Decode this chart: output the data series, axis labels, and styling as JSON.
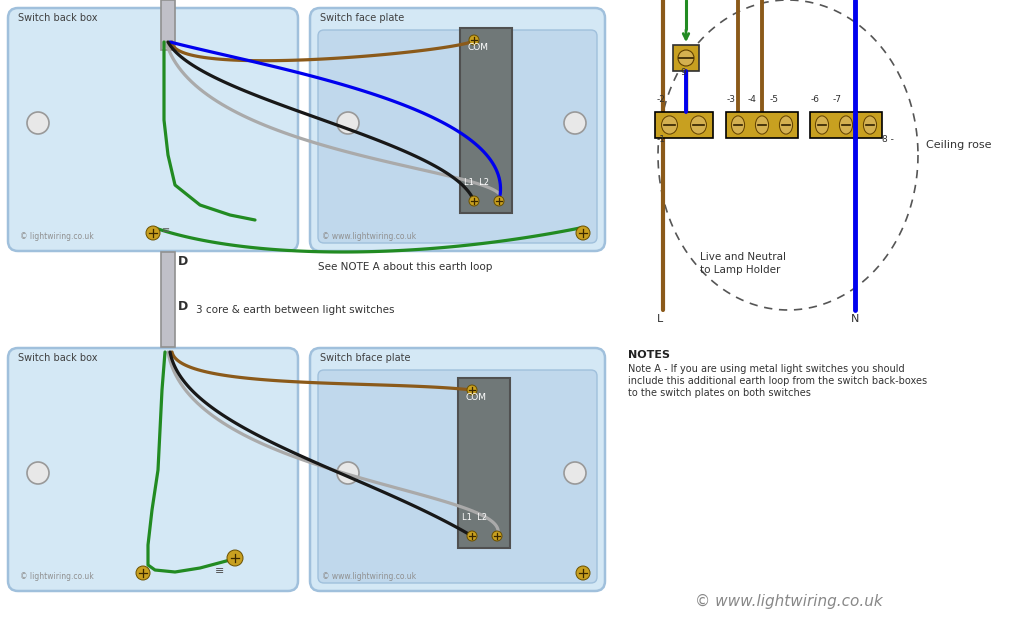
{
  "bg_color": "#ffffff",
  "switch_box_bg": "#d4e8f5",
  "switch_box_border": "#a0c0dc",
  "switch_plate_bg": "#c0d8ec",
  "terminal_block_color": "#c8a020",
  "terminal_block_border": "#000000",
  "switch_body_color": "#707878",
  "switch_body_border": "#505050",
  "wire_brown": "#8B5A1A",
  "wire_blue": "#0000ee",
  "wire_black": "#181818",
  "wire_gray": "#aaaaaa",
  "wire_green": "#228B22",
  "conduit_color": "#c0c0c8",
  "gold_screw": "#c8a020",
  "notes_text_title": "NOTES",
  "notes_line1": "Note A - If you are using metal light switches you should",
  "notes_line2": "include this additional earth loop from the switch back-boxes",
  "notes_line3": "to the switch plates on both switches",
  "copyright_text": "© www.lightwiring.co.uk",
  "ceiling_rose_text": "Ceiling rose",
  "live_neutral_text1": "Live and Neutral",
  "live_neutral_text2": "to Lamp Holder",
  "label_L": "L",
  "label_N": "N",
  "earth_note": "See NOTE A about this earth loop",
  "cable_label": "3 core & earth between light switches",
  "switch1_back_label": "Switch back box",
  "switch1_face_label": "Switch face plate",
  "switch2_back_label": "Switch back box",
  "switch2_face_label": "Switch bface plate",
  "copy1": "© lightwiring.co.uk",
  "copy2": "© www.lightwiring.co.uk",
  "label_com": "COM",
  "label_l1l2": "L1  L2",
  "label_D1": "D",
  "label_D2": "D"
}
